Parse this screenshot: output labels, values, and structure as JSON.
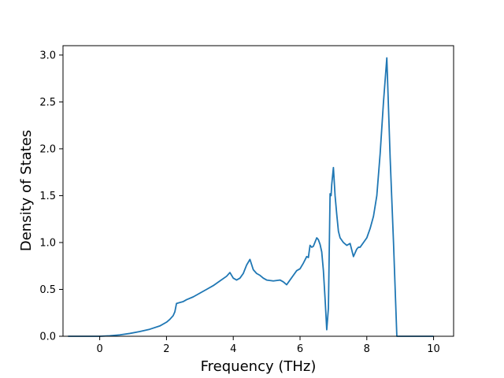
{
  "chart_data": {
    "type": "line",
    "title": "",
    "xlabel": "Frequency (THz)",
    "ylabel": "Density of States",
    "xlim": [
      -1.1,
      10.6
    ],
    "ylim": [
      0.0,
      3.1
    ],
    "xticks": [
      0,
      2,
      4,
      6,
      8,
      10
    ],
    "xtick_labels": [
      "0",
      "2",
      "4",
      "6",
      "8",
      "10"
    ],
    "yticks": [
      0.0,
      0.5,
      1.0,
      1.5,
      2.0,
      2.5,
      3.0
    ],
    "ytick_labels": [
      "0.0",
      "0.5",
      "1.0",
      "1.5",
      "2.0",
      "2.5",
      "3.0"
    ],
    "grid": false,
    "legend": "none",
    "series": [
      {
        "color": "#1f77b4",
        "x": [
          -0.95,
          0.0,
          0.3,
          0.6,
          0.9,
          1.2,
          1.5,
          1.8,
          2.0,
          2.1,
          2.2,
          2.25,
          2.3,
          2.4,
          2.5,
          2.6,
          2.8,
          3.0,
          3.2,
          3.4,
          3.6,
          3.8,
          3.9,
          4.0,
          4.1,
          4.2,
          4.3,
          4.4,
          4.5,
          4.6,
          4.7,
          4.8,
          4.9,
          5.0,
          5.2,
          5.4,
          5.5,
          5.6,
          5.7,
          5.8,
          5.9,
          6.0,
          6.1,
          6.2,
          6.25,
          6.3,
          6.35,
          6.4,
          6.5,
          6.55,
          6.6,
          6.65,
          6.7,
          6.75,
          6.8,
          6.85,
          6.9,
          6.93,
          6.95,
          7.0,
          7.05,
          7.1,
          7.15,
          7.2,
          7.3,
          7.4,
          7.5,
          7.6,
          7.7,
          7.75,
          7.8,
          7.9,
          8.0,
          8.1,
          8.2,
          8.3,
          8.4,
          8.5,
          8.6,
          8.7,
          8.8,
          8.9,
          9.0,
          9.1,
          9.15,
          9.2,
          9.5,
          10.0
        ],
        "y": [
          0.0,
          0.0,
          0.005,
          0.015,
          0.03,
          0.05,
          0.075,
          0.11,
          0.15,
          0.18,
          0.22,
          0.26,
          0.35,
          0.36,
          0.37,
          0.39,
          0.42,
          0.46,
          0.5,
          0.54,
          0.59,
          0.64,
          0.68,
          0.62,
          0.6,
          0.62,
          0.67,
          0.76,
          0.82,
          0.71,
          0.67,
          0.65,
          0.62,
          0.6,
          0.59,
          0.6,
          0.58,
          0.55,
          0.6,
          0.65,
          0.7,
          0.72,
          0.78,
          0.85,
          0.84,
          0.97,
          0.95,
          0.96,
          1.05,
          1.03,
          0.98,
          0.9,
          0.7,
          0.4,
          0.07,
          0.3,
          1.52,
          1.5,
          1.62,
          1.8,
          1.5,
          1.3,
          1.12,
          1.05,
          1.0,
          0.97,
          0.99,
          0.85,
          0.93,
          0.95,
          0.95,
          1.0,
          1.05,
          1.15,
          1.28,
          1.5,
          1.95,
          2.5,
          2.97,
          1.9,
          1.0,
          0.0,
          0.0,
          0.0,
          0.0,
          0.0,
          0.0,
          0.0
        ]
      }
    ]
  }
}
